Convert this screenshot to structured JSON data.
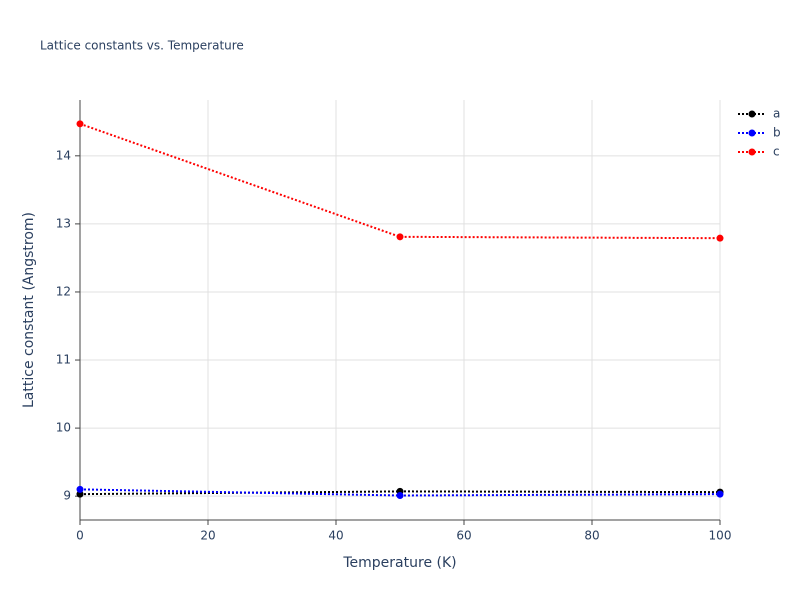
{
  "chart_data": {
    "type": "line",
    "title": "Lattice constants vs. Temperature",
    "x_label": "Temperature (K)",
    "y_label": "Lattice constant (Angstrom)",
    "x": [
      0,
      50,
      100
    ],
    "series": [
      {
        "name": "a",
        "color": "#000000",
        "values": [
          9.03,
          9.07,
          9.06
        ]
      },
      {
        "name": "b",
        "color": "#0000ff",
        "values": [
          9.1,
          9.01,
          9.03
        ]
      },
      {
        "name": "c",
        "color": "#ff0000",
        "values": [
          14.47,
          12.81,
          12.79
        ]
      }
    ],
    "xlim": [
      0,
      100
    ],
    "xticks": [
      0,
      20,
      40,
      60,
      80,
      100
    ],
    "ylim": [
      8.65,
      14.82
    ],
    "yticks": [
      9,
      10,
      11,
      12,
      13,
      14
    ],
    "grid": true,
    "legend": "top-right"
  }
}
